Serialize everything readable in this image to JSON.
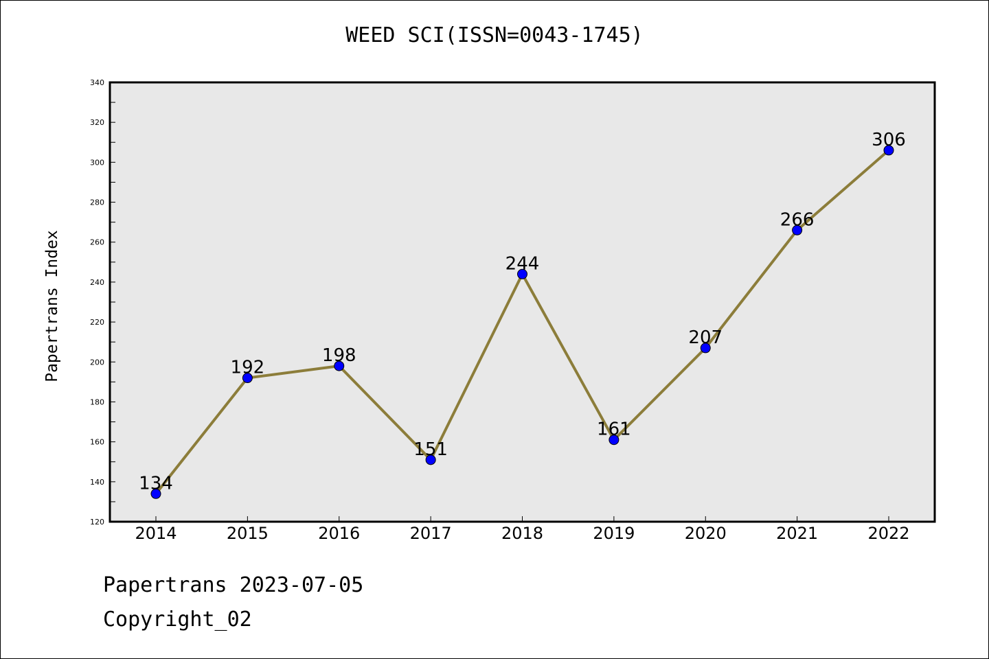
{
  "chart_data": {
    "type": "line",
    "title": "WEED SCI(ISSN=0043-1745)",
    "xlabel": "",
    "ylabel": "Papertrans Index",
    "categories": [
      "2014",
      "2015",
      "2016",
      "2017",
      "2018",
      "2019",
      "2020",
      "2021",
      "2022"
    ],
    "series": [
      {
        "values": [
          134,
          192,
          198,
          151,
          244,
          161,
          207,
          266,
          306
        ],
        "line_color": "#8c7d3a",
        "marker_color": "#0000ff"
      }
    ],
    "ylim": [
      120,
      340
    ],
    "yticks": [
      "120",
      "140",
      "160",
      "180",
      "200",
      "220",
      "240",
      "260",
      "280",
      "300",
      "320",
      "340"
    ],
    "grid": false,
    "plot_background": "#e8e8e8"
  },
  "footer": {
    "line1": "Papertrans 2023-07-05",
    "line2": "Copyright_02"
  }
}
